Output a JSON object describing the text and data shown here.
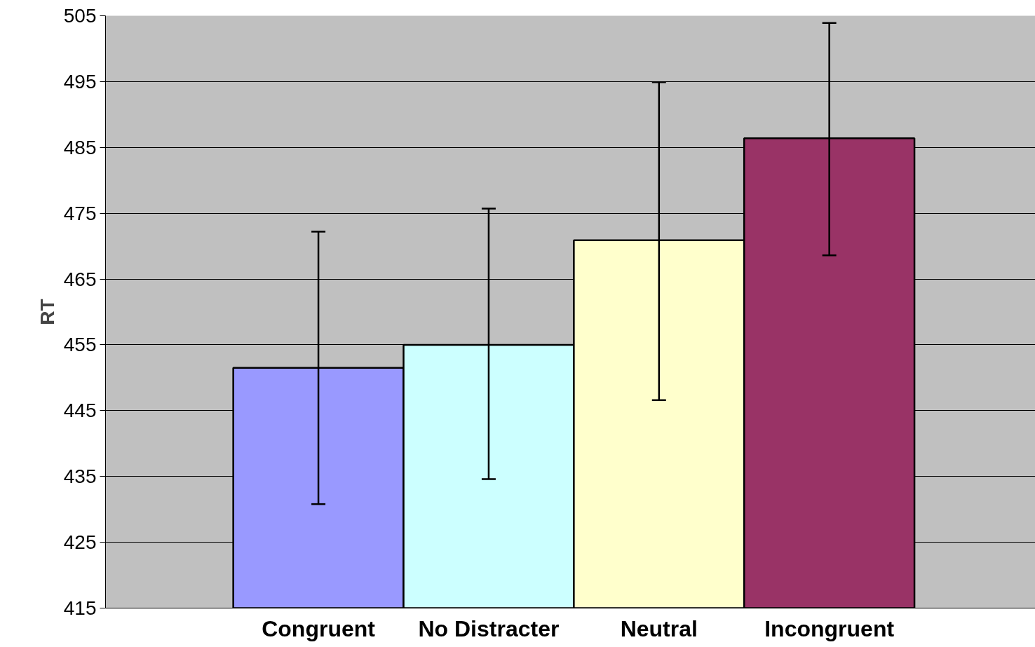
{
  "chart_data": {
    "type": "bar",
    "ylabel": "RT",
    "categories": [
      "Congruent",
      "No Distracter",
      "Neutral",
      "Incongruent"
    ],
    "values": [
      451.5,
      455.0,
      470.9,
      486.4
    ],
    "colors": [
      "#9999ff",
      "#ccffff",
      "#ffffcc",
      "#993366"
    ],
    "errors": [
      [
        430.8,
        472.2
      ],
      [
        434.6,
        475.7
      ],
      [
        446.6,
        494.9
      ],
      [
        468.6,
        503.9
      ]
    ],
    "ylim": [
      415,
      505
    ],
    "yticks": [
      415,
      425,
      435,
      445,
      455,
      465,
      475,
      485,
      495,
      505
    ],
    "grid": "y"
  }
}
